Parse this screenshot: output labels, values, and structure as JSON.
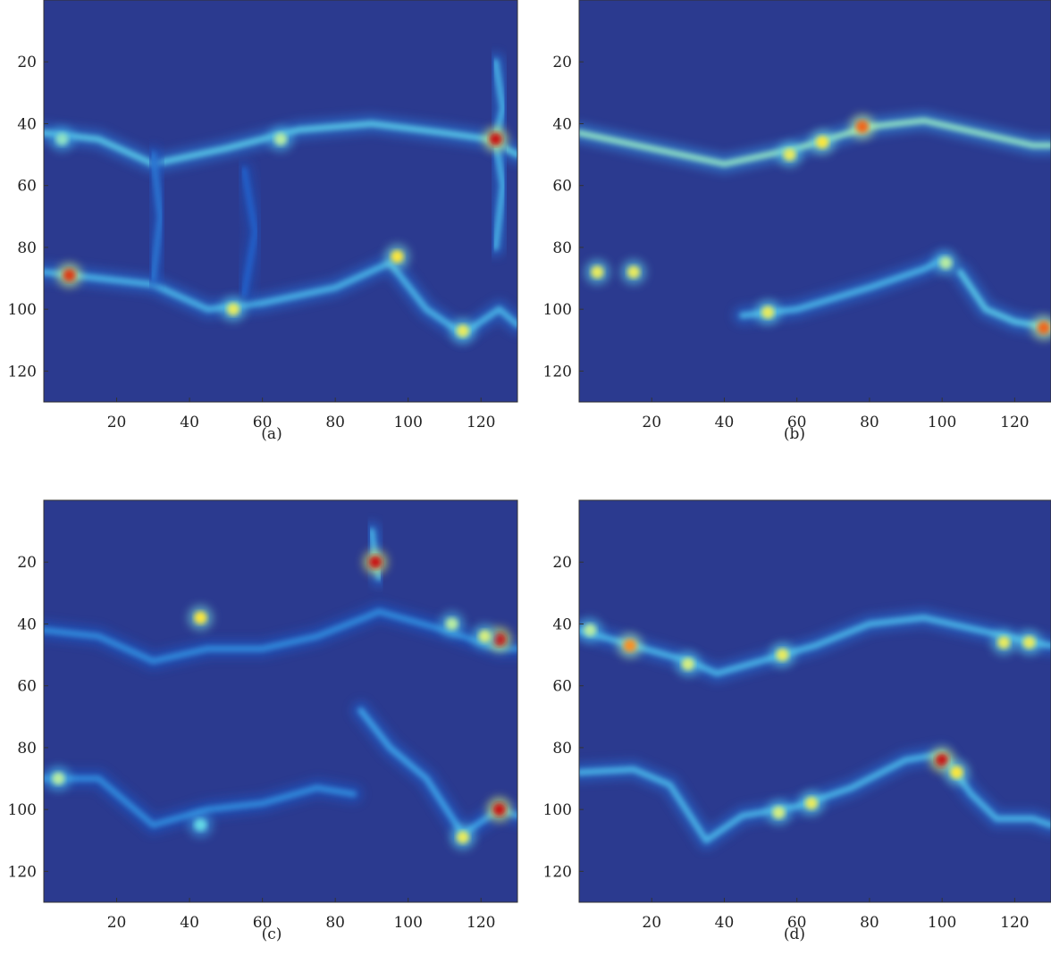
{
  "chart_data": [
    {
      "type": "heatmap",
      "caption": "(a)",
      "x_ticks": [
        20,
        40,
        60,
        80,
        100,
        120
      ],
      "y_ticks": [
        20,
        40,
        60,
        80,
        100,
        120
      ],
      "xlim": [
        0,
        130
      ],
      "ylim": [
        130,
        0
      ],
      "colormap": "jet",
      "background": "#2b3a8f",
      "ridges": [
        {
          "points": [
            [
              0,
              43
            ],
            [
              15,
              45
            ],
            [
              30,
              53
            ],
            [
              50,
              48
            ],
            [
              70,
              42
            ],
            [
              90,
              40
            ],
            [
              110,
              43
            ],
            [
              122,
              45
            ],
            [
              130,
              50
            ]
          ],
          "level": 0.45
        },
        {
          "points": [
            [
              0,
              88
            ],
            [
              15,
              90
            ],
            [
              30,
              92
            ],
            [
              45,
              100
            ],
            [
              60,
              98
            ],
            [
              80,
              93
            ],
            [
              95,
              85
            ],
            [
              105,
              100
            ],
            [
              115,
              108
            ],
            [
              125,
              100
            ],
            [
              130,
              105
            ]
          ],
          "level": 0.4
        },
        {
          "points": [
            [
              124,
              20
            ],
            [
              126,
              35
            ],
            [
              124,
              45
            ],
            [
              126,
              60
            ],
            [
              124,
              80
            ]
          ],
          "level": 0.4
        },
        {
          "points": [
            [
              30,
              50
            ],
            [
              32,
              70
            ],
            [
              30,
              90
            ]
          ],
          "level": 0.25
        },
        {
          "points": [
            [
              55,
              55
            ],
            [
              58,
              75
            ],
            [
              55,
              95
            ]
          ],
          "level": 0.2
        }
      ],
      "hotspots": [
        {
          "x": 124,
          "y": 45,
          "level": 1.0
        },
        {
          "x": 7,
          "y": 89,
          "level": 0.95
        },
        {
          "x": 52,
          "y": 100,
          "level": 0.7
        },
        {
          "x": 97,
          "y": 83,
          "level": 0.75
        },
        {
          "x": 115,
          "y": 107,
          "level": 0.7
        },
        {
          "x": 65,
          "y": 45,
          "level": 0.6
        },
        {
          "x": 5,
          "y": 45,
          "level": 0.55
        }
      ]
    },
    {
      "type": "heatmap",
      "caption": "(b)",
      "x_ticks": [
        20,
        40,
        60,
        80,
        100,
        120
      ],
      "y_ticks": [
        20,
        40,
        60,
        80,
        100,
        120
      ],
      "xlim": [
        0,
        130
      ],
      "ylim": [
        130,
        0
      ],
      "colormap": "jet",
      "background": "#2b3a8f",
      "ridges": [
        {
          "points": [
            [
              0,
              43
            ],
            [
              20,
              48
            ],
            [
              40,
              53
            ],
            [
              60,
              48
            ],
            [
              80,
              41
            ],
            [
              95,
              39
            ],
            [
              110,
              43
            ],
            [
              125,
              47
            ],
            [
              130,
              47
            ]
          ],
          "level": 0.55
        },
        {
          "points": [
            [
              0,
              88
            ],
            [
              10,
              88
            ],
            [
              18,
              88
            ]
          ],
          "level": 0.6
        },
        {
          "points": [
            [
              45,
              102
            ],
            [
              60,
              100
            ],
            [
              80,
              93
            ],
            [
              95,
              87
            ],
            [
              100,
              84
            ]
          ],
          "level": 0.4
        },
        {
          "points": [
            [
              105,
              88
            ],
            [
              112,
              100
            ],
            [
              120,
              104
            ],
            [
              130,
              106
            ]
          ],
          "level": 0.45
        }
      ],
      "hotspots": [
        {
          "x": 78,
          "y": 41,
          "level": 0.9
        },
        {
          "x": 67,
          "y": 46,
          "level": 0.75
        },
        {
          "x": 58,
          "y": 50,
          "level": 0.7
        },
        {
          "x": 128,
          "y": 106,
          "level": 0.9
        },
        {
          "x": 5,
          "y": 88,
          "level": 0.7
        },
        {
          "x": 15,
          "y": 88,
          "level": 0.7
        },
        {
          "x": 52,
          "y": 101,
          "level": 0.7
        },
        {
          "x": 101,
          "y": 85,
          "level": 0.6
        }
      ]
    },
    {
      "type": "heatmap",
      "caption": "(c)",
      "x_ticks": [
        20,
        40,
        60,
        80,
        100,
        120
      ],
      "y_ticks": [
        20,
        40,
        60,
        80,
        100,
        120
      ],
      "xlim": [
        0,
        130
      ],
      "ylim": [
        130,
        0
      ],
      "colormap": "jet",
      "background": "#2b3a8f",
      "ridges": [
        {
          "points": [
            [
              0,
              42
            ],
            [
              15,
              44
            ],
            [
              30,
              52
            ],
            [
              45,
              48
            ],
            [
              60,
              48
            ],
            [
              75,
              44
            ],
            [
              88,
              38
            ],
            [
              92,
              36
            ],
            [
              110,
              42
            ],
            [
              125,
              48
            ],
            [
              130,
              48
            ]
          ],
          "level": 0.3
        },
        {
          "points": [
            [
              0,
              90
            ],
            [
              15,
              90
            ],
            [
              30,
              105
            ],
            [
              45,
              100
            ],
            [
              60,
              98
            ],
            [
              75,
              93
            ],
            [
              85,
              95
            ]
          ],
          "level": 0.3
        },
        {
          "points": [
            [
              87,
              68
            ],
            [
              95,
              80
            ],
            [
              105,
              90
            ],
            [
              115,
              108
            ],
            [
              125,
              100
            ],
            [
              130,
              102
            ]
          ],
          "level": 0.35
        },
        {
          "points": [
            [
              90,
              10
            ],
            [
              91,
              20
            ],
            [
              92,
              25
            ]
          ],
          "level": 0.4
        }
      ],
      "hotspots": [
        {
          "x": 91,
          "y": 20,
          "level": 1.0
        },
        {
          "x": 125,
          "y": 45,
          "level": 1.0
        },
        {
          "x": 125,
          "y": 100,
          "level": 1.0
        },
        {
          "x": 43,
          "y": 38,
          "level": 0.75
        },
        {
          "x": 115,
          "y": 109,
          "level": 0.7
        },
        {
          "x": 121,
          "y": 44,
          "level": 0.65
        },
        {
          "x": 112,
          "y": 40,
          "level": 0.6
        },
        {
          "x": 4,
          "y": 90,
          "level": 0.6
        },
        {
          "x": 43,
          "y": 105,
          "level": 0.5
        }
      ]
    },
    {
      "type": "heatmap",
      "caption": "(d)",
      "x_ticks": [
        20,
        40,
        60,
        80,
        100,
        120
      ],
      "y_ticks": [
        20,
        40,
        60,
        80,
        100,
        120
      ],
      "xlim": [
        0,
        130
      ],
      "ylim": [
        130,
        0
      ],
      "colormap": "jet",
      "background": "#2b3a8f",
      "ridges": [
        {
          "points": [
            [
              0,
              42
            ],
            [
              15,
              47
            ],
            [
              30,
              52
            ],
            [
              38,
              56
            ],
            [
              50,
              52
            ],
            [
              65,
              47
            ],
            [
              80,
              40
            ],
            [
              95,
              38
            ],
            [
              110,
              42
            ],
            [
              125,
              46
            ],
            [
              130,
              47
            ]
          ],
          "level": 0.4
        },
        {
          "points": [
            [
              0,
              88
            ],
            [
              15,
              87
            ],
            [
              25,
              92
            ],
            [
              35,
              110
            ],
            [
              45,
              102
            ],
            [
              60,
              99
            ],
            [
              75,
              93
            ],
            [
              90,
              84
            ],
            [
              100,
              82
            ],
            [
              108,
              95
            ],
            [
              115,
              103
            ],
            [
              125,
              103
            ],
            [
              130,
              105
            ]
          ],
          "level": 0.4
        }
      ],
      "hotspots": [
        {
          "x": 100,
          "y": 84,
          "level": 1.0
        },
        {
          "x": 14,
          "y": 47,
          "level": 0.85
        },
        {
          "x": 104,
          "y": 88,
          "level": 0.75
        },
        {
          "x": 56,
          "y": 50,
          "level": 0.7
        },
        {
          "x": 64,
          "y": 98,
          "level": 0.7
        },
        {
          "x": 117,
          "y": 46,
          "level": 0.7
        },
        {
          "x": 124,
          "y": 46,
          "level": 0.7
        },
        {
          "x": 30,
          "y": 53,
          "level": 0.65
        },
        {
          "x": 55,
          "y": 101,
          "level": 0.65
        },
        {
          "x": 3,
          "y": 42,
          "level": 0.6
        }
      ]
    }
  ]
}
